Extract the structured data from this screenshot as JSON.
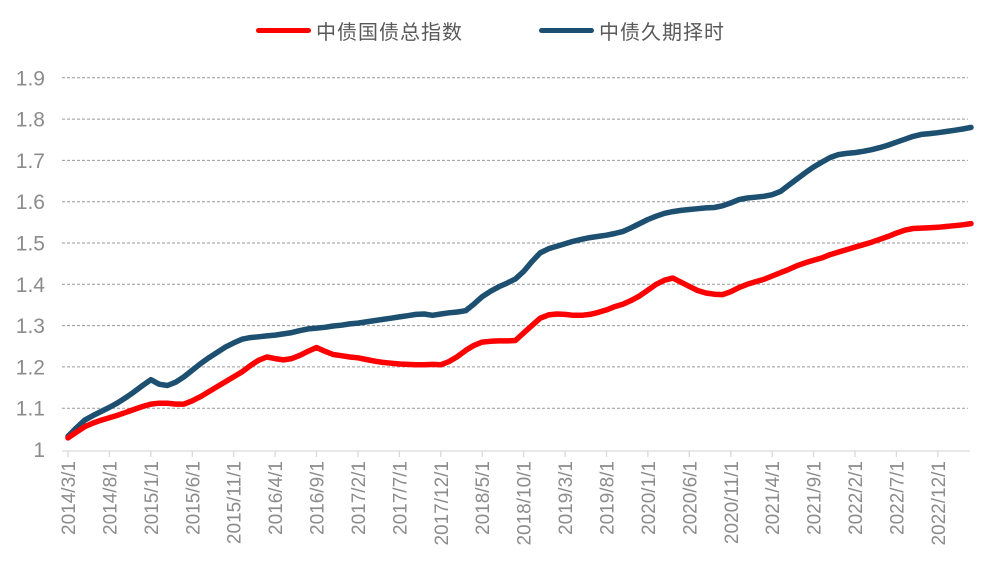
{
  "page": {
    "background": "#ffffff"
  },
  "legend": {
    "items": [
      {
        "label": "中债国债总指数",
        "color": "#ff0000"
      },
      {
        "label": "中债久期择时",
        "color": "#1c4f70"
      }
    ]
  },
  "style": {
    "gridline_color": "#999999",
    "axis_line_color": "#d9d9d9",
    "tick_label_color": "#8c8c8c",
    "legend_text_color": "#595959"
  },
  "chart_data": {
    "type": "line",
    "title": "",
    "xlabel": "",
    "ylabel": "",
    "ylim": [
      1,
      1.9
    ],
    "grid": "horizontal-dashed",
    "legend_position": "top-center",
    "y_ticks": [
      1,
      1.1,
      1.2,
      1.3,
      1.4,
      1.5,
      1.6,
      1.7,
      1.8,
      1.9
    ],
    "y_tick_labels": [
      "1",
      "1.1",
      "1.2",
      "1.3",
      "1.4",
      "1.5",
      "1.6",
      "1.7",
      "1.8",
      "1.9"
    ],
    "x_tick_interval": 5,
    "x_tick_labels": [
      "2014/3/1",
      "2014/8/1",
      "2015/1/1",
      "2015/6/1",
      "2015/11/1",
      "2016/4/1",
      "2016/9/1",
      "2017/2/1",
      "2017/7/1",
      "2017/12/1",
      "2018/5/1",
      "2018/10/1",
      "2019/3/1",
      "2019/8/1",
      "2020/1/1",
      "2020/6/1",
      "2020/11/1",
      "2021/4/1",
      "2021/9/1",
      "2022/2/1",
      "2022/7/1",
      "2022/12/1"
    ],
    "x": [
      "2014/3/1",
      "2014/4/1",
      "2014/5/1",
      "2014/6/1",
      "2014/7/1",
      "2014/8/1",
      "2014/9/1",
      "2014/10/1",
      "2014/11/1",
      "2014/12/1",
      "2015/1/1",
      "2015/2/1",
      "2015/3/1",
      "2015/4/1",
      "2015/5/1",
      "2015/6/1",
      "2015/7/1",
      "2015/8/1",
      "2015/9/1",
      "2015/10/1",
      "2015/11/1",
      "2015/12/1",
      "2016/1/1",
      "2016/2/1",
      "2016/3/1",
      "2016/4/1",
      "2016/5/1",
      "2016/6/1",
      "2016/7/1",
      "2016/8/1",
      "2016/9/1",
      "2016/10/1",
      "2016/11/1",
      "2016/12/1",
      "2017/1/1",
      "2017/2/1",
      "2017/3/1",
      "2017/4/1",
      "2017/5/1",
      "2017/6/1",
      "2017/7/1",
      "2017/8/1",
      "2017/9/1",
      "2017/10/1",
      "2017/11/1",
      "2017/12/1",
      "2018/1/1",
      "2018/2/1",
      "2018/3/1",
      "2018/4/1",
      "2018/5/1",
      "2018/6/1",
      "2018/7/1",
      "2018/8/1",
      "2018/9/1",
      "2018/10/1",
      "2018/11/1",
      "2018/12/1",
      "2019/1/1",
      "2019/2/1",
      "2019/3/1",
      "2019/4/1",
      "2019/5/1",
      "2019/6/1",
      "2019/7/1",
      "2019/8/1",
      "2019/9/1",
      "2019/10/1",
      "2019/11/1",
      "2019/12/1",
      "2020/1/1",
      "2020/2/1",
      "2020/3/1",
      "2020/4/1",
      "2020/5/1",
      "2020/6/1",
      "2020/7/1",
      "2020/8/1",
      "2020/9/1",
      "2020/10/1",
      "2020/11/1",
      "2020/12/1",
      "2021/1/1",
      "2021/2/1",
      "2021/3/1",
      "2021/4/1",
      "2021/5/1",
      "2021/6/1",
      "2021/7/1",
      "2021/8/1",
      "2021/9/1",
      "2021/10/1",
      "2021/11/1",
      "2021/12/1",
      "2022/1/1",
      "2022/2/1",
      "2022/3/1",
      "2022/4/1",
      "2022/5/1",
      "2022/6/1",
      "2022/7/1",
      "2022/8/1",
      "2022/9/1",
      "2022/10/1",
      "2022/11/1",
      "2022/12/1",
      "2023/1/1",
      "2023/2/1",
      "2023/3/1",
      "2023/4/1"
    ],
    "series": [
      {
        "name": "中债久期择时",
        "color": "#1c4f70",
        "values": [
          1.032,
          1.052,
          1.071,
          1.082,
          1.092,
          1.102,
          1.113,
          1.126,
          1.14,
          1.155,
          1.169,
          1.158,
          1.155,
          1.163,
          1.176,
          1.192,
          1.208,
          1.222,
          1.235,
          1.248,
          1.258,
          1.267,
          1.271,
          1.273,
          1.275,
          1.277,
          1.28,
          1.283,
          1.288,
          1.292,
          1.294,
          1.296,
          1.299,
          1.301,
          1.304,
          1.306,
          1.309,
          1.312,
          1.315,
          1.318,
          1.321,
          1.324,
          1.327,
          1.328,
          1.325,
          1.328,
          1.331,
          1.333,
          1.336,
          1.352,
          1.37,
          1.383,
          1.394,
          1.403,
          1.413,
          1.431,
          1.455,
          1.476,
          1.486,
          1.492,
          1.498,
          1.504,
          1.509,
          1.513,
          1.516,
          1.519,
          1.523,
          1.528,
          1.537,
          1.547,
          1.557,
          1.565,
          1.572,
          1.576,
          1.579,
          1.581,
          1.583,
          1.585,
          1.586,
          1.59,
          1.597,
          1.605,
          1.609,
          1.611,
          1.613,
          1.617,
          1.625,
          1.64,
          1.655,
          1.67,
          1.684,
          1.696,
          1.707,
          1.714,
          1.717,
          1.719,
          1.722,
          1.726,
          1.731,
          1.737,
          1.744,
          1.751,
          1.758,
          1.763,
          1.765,
          1.767,
          1.77,
          1.773,
          1.776,
          1.78
        ]
      },
      {
        "name": "中债国债总指数",
        "color": "#ff0000",
        "values": [
          1.028,
          1.042,
          1.055,
          1.064,
          1.071,
          1.077,
          1.083,
          1.09,
          1.097,
          1.104,
          1.11,
          1.112,
          1.112,
          1.11,
          1.11,
          1.118,
          1.128,
          1.14,
          1.152,
          1.164,
          1.176,
          1.188,
          1.203,
          1.216,
          1.224,
          1.22,
          1.217,
          1.22,
          1.228,
          1.238,
          1.247,
          1.238,
          1.23,
          1.227,
          1.224,
          1.222,
          1.218,
          1.214,
          1.211,
          1.209,
          1.207,
          1.206,
          1.205,
          1.205,
          1.206,
          1.205,
          1.213,
          1.225,
          1.24,
          1.252,
          1.26,
          1.262,
          1.263,
          1.263,
          1.264,
          1.282,
          1.3,
          1.318,
          1.326,
          1.328,
          1.327,
          1.325,
          1.325,
          1.327,
          1.332,
          1.338,
          1.346,
          1.352,
          1.361,
          1.372,
          1.386,
          1.4,
          1.41,
          1.415,
          1.405,
          1.395,
          1.385,
          1.379,
          1.376,
          1.375,
          1.382,
          1.392,
          1.4,
          1.406,
          1.412,
          1.42,
          1.428,
          1.436,
          1.445,
          1.452,
          1.458,
          1.464,
          1.472,
          1.478,
          1.484,
          1.49,
          1.496,
          1.502,
          1.509,
          1.516,
          1.524,
          1.531,
          1.535,
          1.536,
          1.537,
          1.538,
          1.54,
          1.542,
          1.544,
          1.547
        ]
      }
    ]
  }
}
